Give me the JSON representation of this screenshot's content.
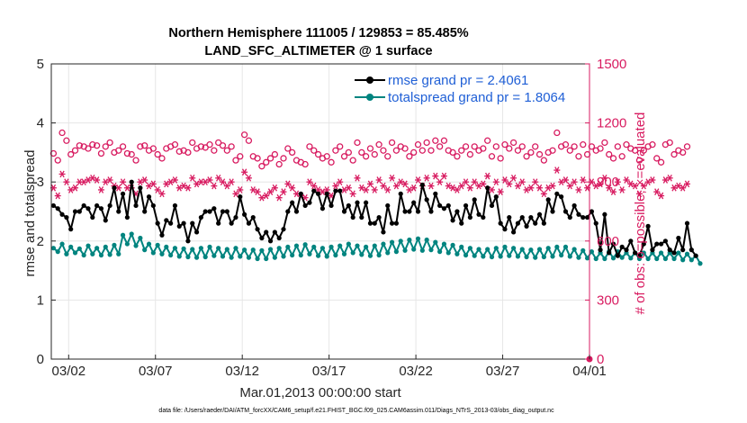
{
  "page": {
    "footer": "data file: /Users/raeder/DAI/ATM_forcXX/CAM6_setup/f.e21.FHIST_BGC.f09_025.CAM6assim.011/Diags_NTrS_2013-03/obs_diag_output.nc"
  },
  "colors": {
    "rmse": "#000000",
    "spread": "#00847f",
    "obs": "#d81b60",
    "legend_text": "#1f5fd6",
    "axis": "#262626",
    "grid": "#e6e6e6"
  },
  "chart_data": {
    "type": "line",
    "title_line1": "Northern Hemisphere 111005 / 129853 = 85.485%",
    "title_line2": "LAND_SFC_ALTIMETER @ 1 surface",
    "xlabel": "Mar.01,2013 00:00:00 start",
    "ylabel_left": "rmse and totalspread",
    "ylabel_right": "# of obs: o=possible; ×=evaluated",
    "xlim": [
      0,
      31
    ],
    "ylim_left": [
      0,
      5
    ],
    "ylim_right": [
      0,
      1500
    ],
    "x_ticks": [
      {
        "value": 1,
        "label": "03/02"
      },
      {
        "value": 6,
        "label": "03/07"
      },
      {
        "value": 11,
        "label": "03/12"
      },
      {
        "value": 16,
        "label": "03/17"
      },
      {
        "value": 21,
        "label": "03/22"
      },
      {
        "value": 26,
        "label": "03/27"
      },
      {
        "value": 31,
        "label": "04/01"
      }
    ],
    "y_ticks_left": [
      "0",
      "1",
      "2",
      "3",
      "4",
      "5"
    ],
    "y_ticks_right": [
      "0",
      "300",
      "600",
      "900",
      "1200",
      "1500"
    ],
    "step_hours": 6,
    "legend": [
      {
        "key": "rmse",
        "label": "rmse grand pr = 2.4061"
      },
      {
        "key": "spread",
        "label": "totalspread grand pr = 1.8064"
      }
    ],
    "series": [
      {
        "name": "rmse",
        "values": [
          2.6,
          2.55,
          2.45,
          2.4,
          2.2,
          2.5,
          2.5,
          2.6,
          2.55,
          2.4,
          2.6,
          2.55,
          2.35,
          2.6,
          2.9,
          2.5,
          2.8,
          2.4,
          3.0,
          2.6,
          2.9,
          2.5,
          2.75,
          2.6,
          2.3,
          2.1,
          2.35,
          2.3,
          2.6,
          2.25,
          2.3,
          2.0,
          2.3,
          2.15,
          2.4,
          2.5,
          2.5,
          2.55,
          2.3,
          2.5,
          2.5,
          2.3,
          2.4,
          2.75,
          2.45,
          2.3,
          2.4,
          2.2,
          2.05,
          2.15,
          2.0,
          2.15,
          2.05,
          2.2,
          2.5,
          2.65,
          2.5,
          2.8,
          2.6,
          2.65,
          2.85,
          2.8,
          2.55,
          2.8,
          2.6,
          2.85,
          2.85,
          2.5,
          2.6,
          2.4,
          2.65,
          2.4,
          2.65,
          2.3,
          2.3,
          2.4,
          2.15,
          2.6,
          2.3,
          2.3,
          2.8,
          2.5,
          2.5,
          2.65,
          2.5,
          2.95,
          2.7,
          2.5,
          2.8,
          2.6,
          2.55,
          2.6,
          2.35,
          2.5,
          2.3,
          2.6,
          2.4,
          2.7,
          2.45,
          2.4,
          2.9,
          2.6,
          2.75,
          2.3,
          2.2,
          2.4,
          2.15,
          2.3,
          2.4,
          2.25,
          2.4,
          2.3,
          2.45,
          2.3,
          2.7,
          2.5,
          2.8,
          2.75,
          2.5,
          2.4,
          2.6,
          2.45,
          2.4,
          2.4,
          2.5,
          2.3,
          1.85,
          2.45,
          1.8,
          1.95,
          1.75,
          1.9,
          1.85,
          2.0,
          1.8,
          1.75,
          1.95,
          2.25,
          1.85,
          1.95,
          1.95,
          2.0,
          1.85,
          1.8,
          2.05,
          1.85,
          2.3,
          1.85,
          1.75
        ]
      },
      {
        "name": "totalspread",
        "values": [
          1.88,
          1.82,
          1.95,
          1.78,
          1.9,
          1.8,
          1.87,
          1.76,
          1.92,
          1.78,
          1.88,
          1.76,
          1.9,
          1.77,
          1.93,
          1.78,
          2.1,
          1.95,
          2.12,
          1.92,
          2.05,
          1.85,
          1.95,
          1.8,
          1.93,
          1.78,
          1.9,
          1.76,
          1.88,
          1.74,
          1.87,
          1.73,
          1.86,
          1.72,
          1.88,
          1.73,
          1.9,
          1.75,
          1.88,
          1.74,
          1.86,
          1.72,
          1.88,
          1.74,
          1.85,
          1.72,
          1.85,
          1.7,
          1.84,
          1.7,
          1.86,
          1.72,
          1.88,
          1.74,
          1.9,
          1.76,
          1.92,
          1.76,
          1.94,
          1.78,
          1.9,
          1.75,
          1.88,
          1.74,
          1.9,
          1.76,
          1.92,
          1.78,
          1.95,
          1.8,
          1.92,
          1.77,
          1.9,
          1.75,
          1.92,
          1.76,
          1.95,
          1.8,
          1.98,
          1.82,
          2.0,
          1.84,
          2.02,
          1.86,
          2.04,
          1.84,
          2.02,
          1.85,
          1.98,
          1.82,
          1.95,
          1.8,
          1.93,
          1.78,
          1.9,
          1.76,
          1.88,
          1.75,
          1.86,
          1.74,
          1.86,
          1.73,
          1.88,
          1.74,
          1.9,
          1.75,
          1.88,
          1.74,
          1.86,
          1.73,
          1.85,
          1.72,
          1.86,
          1.73,
          1.88,
          1.74,
          1.9,
          1.76,
          1.9,
          1.74,
          1.86,
          1.72,
          1.84,
          1.71,
          1.82,
          1.7,
          1.8,
          1.7,
          1.82,
          1.71,
          1.82,
          1.72,
          1.8,
          1.71,
          1.8,
          1.7,
          1.8,
          1.7,
          1.8,
          1.7,
          1.8,
          1.7,
          1.8,
          1.7,
          1.8,
          1.68,
          1.78,
          1.68,
          1.75,
          1.62
        ]
      },
      {
        "name": "obs_possible",
        "values": [
          1045,
          1010,
          1150,
          1110,
          1040,
          1060,
          1085,
          1080,
          1070,
          1090,
          1085,
          1045,
          1080,
          1100,
          1050,
          1060,
          1080,
          1045,
          1040,
          1010,
          1080,
          1085,
          1060,
          1070,
          1040,
          1020,
          1070,
          1080,
          1090,
          1055,
          1060,
          1050,
          1100,
          1070,
          1080,
          1075,
          1090,
          1060,
          1100,
          1085,
          1060,
          1080,
          1010,
          1030,
          1140,
          1110,
          1030,
          1020,
          980,
          1000,
          1020,
          1040,
          990,
          1020,
          1070,
          1050,
          1010,
          1000,
          990,
          1080,
          1060,
          1040,
          1020,
          1030,
          1000,
          1060,
          1080,
          1030,
          1050,
          1010,
          1100,
          1050,
          1030,
          1070,
          1040,
          1090,
          1060,
          1030,
          1100,
          1060,
          1080,
          1070,
          1030,
          1050,
          1090,
          1060,
          1100,
          1060,
          1110,
          1080,
          1110,
          1060,
          1050,
          1030,
          1060,
          1080,
          1040,
          1080,
          1060,
          1070,
          1110,
          1030,
          1080,
          1020,
          1090,
          1070,
          1100,
          1060,
          1080,
          1030,
          1050,
          1080,
          1040,
          1010,
          1050,
          1060,
          1150,
          1080,
          1090,
          1060,
          1080,
          1030,
          1090,
          1040,
          1080,
          1060,
          1070,
          1100,
          1040,
          1020,
          1080,
          1030,
          1090,
          1070,
          1060,
          1010,
          1060,
          1080,
          1090,
          1020,
          1000,
          1090,
          1100,
          1040,
          1060,
          1050,
          1080
        ]
      },
      {
        "name": "obs_evaluated",
        "values": [
          870,
          830,
          940,
          900,
          860,
          870,
          900,
          900,
          910,
          920,
          910,
          860,
          900,
          910,
          880,
          870,
          900,
          870,
          870,
          840,
          900,
          910,
          880,
          890,
          860,
          840,
          890,
          900,
          910,
          870,
          880,
          870,
          920,
          890,
          900,
          900,
          910,
          880,
          920,
          900,
          880,
          900,
          840,
          860,
          950,
          920,
          860,
          850,
          820,
          830,
          850,
          870,
          820,
          850,
          890,
          870,
          840,
          830,
          820,
          900,
          880,
          860,
          850,
          860,
          830,
          880,
          900,
          860,
          870,
          840,
          920,
          870,
          860,
          890,
          860,
          910,
          880,
          860,
          920,
          880,
          900,
          890,
          860,
          870,
          910,
          880,
          920,
          880,
          930,
          900,
          930,
          880,
          870,
          860,
          880,
          900,
          870,
          900,
          880,
          890,
          930,
          860,
          900,
          850,
          910,
          890,
          920,
          880,
          900,
          860,
          870,
          900,
          870,
          840,
          870,
          880,
          960,
          900,
          910,
          880,
          900,
          860,
          910,
          870,
          900,
          880,
          890,
          920,
          870,
          850,
          900,
          860,
          910,
          890,
          880,
          840,
          880,
          900,
          910,
          850,
          830,
          910,
          920,
          870,
          880,
          870,
          890
        ]
      }
    ]
  }
}
